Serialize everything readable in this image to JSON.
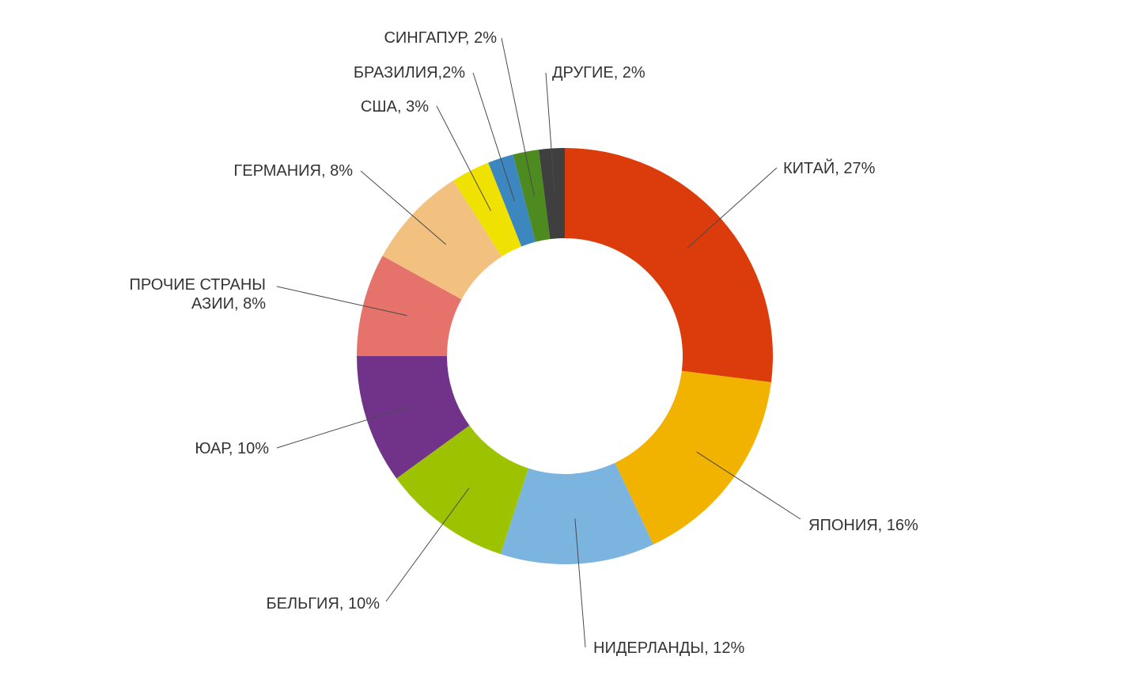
{
  "chart_data": {
    "type": "pie",
    "donut": true,
    "categories": [
      "КИТАЙ",
      "ЯПОНИЯ",
      "НИДЕРЛАНДЫ",
      "БЕЛЬГИЯ",
      "ЮАР",
      "ПРОЧИЕ СТРАНЫ АЗИИ",
      "ГЕРМАНИЯ",
      "США",
      "БРАЗИЛИЯ",
      "СИНГАПУР",
      "ДРУГИЕ"
    ],
    "values": [
      27,
      16,
      12,
      10,
      10,
      8,
      8,
      3,
      2,
      2,
      2
    ],
    "colors": [
      "#dc3b0c",
      "#f2b200",
      "#7cb4e0",
      "#9dc300",
      "#71338a",
      "#e5726b",
      "#f2c07f",
      "#f0e200",
      "#3d87c0",
      "#4d8b21",
      "#3f3f3f"
    ],
    "data_labels": [
      [
        "КИТАЙ, 27%"
      ],
      [
        "ЯПОНИЯ, 16%"
      ],
      [
        "НИДЕРЛАНДЫ, 12%"
      ],
      [
        "БЕЛЬГИЯ, 10%"
      ],
      [
        "ЮАР, 10%"
      ],
      [
        "ПРОЧИЕ СТРАНЫ",
        "АЗИИ, 8%"
      ],
      [
        "ГЕРМАНИЯ, 8%"
      ],
      [
        "США, 3%"
      ],
      [
        "БРАЗИЛИЯ,2%"
      ],
      [
        "СИНГАПУР, 2%"
      ],
      [
        "ДРУГИЕ, 2%"
      ]
    ]
  }
}
